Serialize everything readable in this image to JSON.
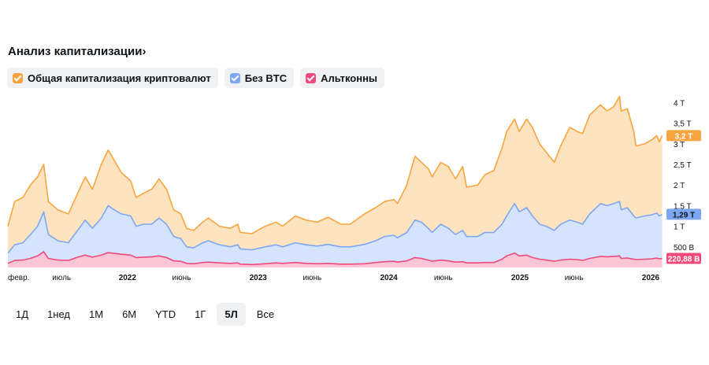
{
  "header": {
    "title": "Анализ капитализации›"
  },
  "legend": [
    {
      "label": "Общая капитализация криптовалют",
      "color": "#f7a540"
    },
    {
      "label": "Без BTC",
      "color": "#7ea7f2"
    },
    {
      "label": "Альтконны",
      "color": "#ef4a7d"
    }
  ],
  "tabs": [
    "1Д",
    "1нед",
    "1М",
    "6М",
    "YTD",
    "1Г",
    "5Л",
    "Все"
  ],
  "active_tab": "5Л",
  "chart_data": {
    "type": "area",
    "title": "Анализ капитализации",
    "x_start": "2021-02",
    "x_end": "2026-02",
    "ylim": [
      0,
      4.2
    ],
    "y_ticks": [
      {
        "v": 0.5,
        "label": "500 B"
      },
      {
        "v": 1.0,
        "label": "1 T"
      },
      {
        "v": 1.5,
        "label": "1,5 T"
      },
      {
        "v": 2.0,
        "label": "2 T"
      },
      {
        "v": 2.5,
        "label": "2,5 T"
      },
      {
        "v": 3.0,
        "label": "3 T"
      },
      {
        "v": 3.5,
        "label": "3,5 T"
      },
      {
        "v": 4.0,
        "label": "4 T"
      }
    ],
    "x_ticks": [
      {
        "t": "2021-02",
        "label": "февр."
      },
      {
        "t": "2021-07",
        "label": "июль"
      },
      {
        "t": "2022-01",
        "label": "2022"
      },
      {
        "t": "2022-06",
        "label": "июнь"
      },
      {
        "t": "2023-01",
        "label": "2023"
      },
      {
        "t": "2023-06",
        "label": "июнь"
      },
      {
        "t": "2024-01",
        "label": "2024"
      },
      {
        "t": "2024-06",
        "label": "июнь"
      },
      {
        "t": "2025-01",
        "label": "2025"
      },
      {
        "t": "2025-06",
        "label": "июнь"
      },
      {
        "t": "2026-01",
        "label": "2026"
      }
    ],
    "series": [
      {
        "name": "Общая капитализация криптовалют",
        "color": "#f7a540",
        "fill": "#fde3c0",
        "last_label": "3,2 T",
        "points": [
          [
            "2021-02-01",
            1.0
          ],
          [
            "2021-02-20",
            1.6
          ],
          [
            "2021-03-15",
            1.7
          ],
          [
            "2021-04-05",
            2.0
          ],
          [
            "2021-04-25",
            2.2
          ],
          [
            "2021-05-12",
            2.5
          ],
          [
            "2021-05-25",
            1.6
          ],
          [
            "2021-06-20",
            1.4
          ],
          [
            "2021-07-20",
            1.3
          ],
          [
            "2021-08-15",
            1.8
          ],
          [
            "2021-09-05",
            2.2
          ],
          [
            "2021-09-25",
            1.9
          ],
          [
            "2021-10-20",
            2.5
          ],
          [
            "2021-11-08",
            2.85
          ],
          [
            "2021-11-25",
            2.6
          ],
          [
            "2021-12-15",
            2.3
          ],
          [
            "2022-01-10",
            2.1
          ],
          [
            "2022-01-25",
            1.7
          ],
          [
            "2022-02-15",
            1.8
          ],
          [
            "2022-03-10",
            1.9
          ],
          [
            "2022-03-30",
            2.15
          ],
          [
            "2022-04-20",
            1.9
          ],
          [
            "2022-05-10",
            1.4
          ],
          [
            "2022-05-30",
            1.3
          ],
          [
            "2022-06-15",
            0.95
          ],
          [
            "2022-07-05",
            0.9
          ],
          [
            "2022-07-30",
            1.1
          ],
          [
            "2022-08-15",
            1.2
          ],
          [
            "2022-09-15",
            1.0
          ],
          [
            "2022-10-15",
            0.95
          ],
          [
            "2022-11-05",
            1.05
          ],
          [
            "2022-11-12",
            0.85
          ],
          [
            "2022-12-15",
            0.82
          ],
          [
            "2023-01-20",
            1.0
          ],
          [
            "2023-02-20",
            1.1
          ],
          [
            "2023-03-10",
            1.0
          ],
          [
            "2023-04-15",
            1.25
          ],
          [
            "2023-05-15",
            1.15
          ],
          [
            "2023-06-15",
            1.1
          ],
          [
            "2023-07-15",
            1.22
          ],
          [
            "2023-08-20",
            1.05
          ],
          [
            "2023-09-15",
            1.05
          ],
          [
            "2023-10-25",
            1.3
          ],
          [
            "2023-11-25",
            1.45
          ],
          [
            "2023-12-20",
            1.6
          ],
          [
            "2024-01-15",
            1.65
          ],
          [
            "2024-01-25",
            1.55
          ],
          [
            "2024-02-20",
            2.0
          ],
          [
            "2024-03-14",
            2.7
          ],
          [
            "2024-04-01",
            2.55
          ],
          [
            "2024-04-20",
            2.4
          ],
          [
            "2024-05-01",
            2.2
          ],
          [
            "2024-05-25",
            2.55
          ],
          [
            "2024-06-15",
            2.45
          ],
          [
            "2024-07-05",
            2.15
          ],
          [
            "2024-07-25",
            2.45
          ],
          [
            "2024-08-05",
            1.95
          ],
          [
            "2024-09-05",
            2.0
          ],
          [
            "2024-09-25",
            2.25
          ],
          [
            "2024-10-20",
            2.35
          ],
          [
            "2024-11-12",
            2.9
          ],
          [
            "2024-11-25",
            3.3
          ],
          [
            "2024-12-17",
            3.6
          ],
          [
            "2024-12-30",
            3.3
          ],
          [
            "2025-01-20",
            3.6
          ],
          [
            "2025-02-05",
            3.4
          ],
          [
            "2025-02-25",
            3.0
          ],
          [
            "2025-03-15",
            2.8
          ],
          [
            "2025-04-07",
            2.55
          ],
          [
            "2025-04-25",
            2.95
          ],
          [
            "2025-05-20",
            3.4
          ],
          [
            "2025-06-10",
            3.3
          ],
          [
            "2025-06-25",
            3.25
          ],
          [
            "2025-07-15",
            3.7
          ],
          [
            "2025-08-14",
            3.95
          ],
          [
            "2025-09-01",
            3.8
          ],
          [
            "2025-09-20",
            3.9
          ],
          [
            "2025-10-06",
            4.15
          ],
          [
            "2025-10-11",
            3.8
          ],
          [
            "2025-10-28",
            3.85
          ],
          [
            "2025-11-15",
            3.3
          ],
          [
            "2025-11-21",
            2.95
          ],
          [
            "2025-12-15",
            3.0
          ],
          [
            "2026-01-05",
            3.1
          ],
          [
            "2026-01-18",
            3.2
          ],
          [
            "2026-01-25",
            3.05
          ],
          [
            "2026-02-02",
            3.2
          ]
        ]
      },
      {
        "name": "Без BTC",
        "color": "#7ea7f2",
        "fill": "#d6e3fc",
        "last_label": "1,29 T",
        "points": [
          [
            "2021-02-01",
            0.35
          ],
          [
            "2021-02-20",
            0.55
          ],
          [
            "2021-03-15",
            0.6
          ],
          [
            "2021-04-05",
            0.8
          ],
          [
            "2021-04-25",
            1.0
          ],
          [
            "2021-05-12",
            1.35
          ],
          [
            "2021-05-25",
            0.8
          ],
          [
            "2021-06-20",
            0.65
          ],
          [
            "2021-07-20",
            0.6
          ],
          [
            "2021-08-15",
            0.9
          ],
          [
            "2021-09-05",
            1.15
          ],
          [
            "2021-09-25",
            0.95
          ],
          [
            "2021-10-20",
            1.2
          ],
          [
            "2021-11-08",
            1.5
          ],
          [
            "2021-11-25",
            1.4
          ],
          [
            "2021-12-15",
            1.3
          ],
          [
            "2022-01-10",
            1.25
          ],
          [
            "2022-01-25",
            1.0
          ],
          [
            "2022-02-15",
            1.05
          ],
          [
            "2022-03-10",
            1.05
          ],
          [
            "2022-03-30",
            1.2
          ],
          [
            "2022-04-20",
            1.05
          ],
          [
            "2022-05-10",
            0.75
          ],
          [
            "2022-05-30",
            0.7
          ],
          [
            "2022-06-15",
            0.5
          ],
          [
            "2022-07-05",
            0.48
          ],
          [
            "2022-07-30",
            0.6
          ],
          [
            "2022-08-15",
            0.65
          ],
          [
            "2022-09-15",
            0.55
          ],
          [
            "2022-10-15",
            0.5
          ],
          [
            "2022-11-05",
            0.55
          ],
          [
            "2022-11-12",
            0.45
          ],
          [
            "2022-12-15",
            0.43
          ],
          [
            "2023-01-20",
            0.5
          ],
          [
            "2023-02-20",
            0.55
          ],
          [
            "2023-03-10",
            0.5
          ],
          [
            "2023-04-15",
            0.6
          ],
          [
            "2023-05-15",
            0.55
          ],
          [
            "2023-06-15",
            0.52
          ],
          [
            "2023-07-15",
            0.56
          ],
          [
            "2023-08-20",
            0.5
          ],
          [
            "2023-09-15",
            0.5
          ],
          [
            "2023-10-25",
            0.56
          ],
          [
            "2023-11-25",
            0.65
          ],
          [
            "2023-12-20",
            0.75
          ],
          [
            "2024-01-15",
            0.78
          ],
          [
            "2024-01-25",
            0.72
          ],
          [
            "2024-02-20",
            0.85
          ],
          [
            "2024-03-14",
            1.15
          ],
          [
            "2024-04-01",
            1.1
          ],
          [
            "2024-04-20",
            0.95
          ],
          [
            "2024-05-01",
            0.85
          ],
          [
            "2024-05-25",
            1.05
          ],
          [
            "2024-06-15",
            0.95
          ],
          [
            "2024-07-05",
            0.8
          ],
          [
            "2024-07-25",
            0.9
          ],
          [
            "2024-08-05",
            0.75
          ],
          [
            "2024-09-05",
            0.75
          ],
          [
            "2024-09-25",
            0.85
          ],
          [
            "2024-10-20",
            0.85
          ],
          [
            "2024-11-12",
            1.05
          ],
          [
            "2024-11-25",
            1.25
          ],
          [
            "2024-12-17",
            1.55
          ],
          [
            "2024-12-30",
            1.35
          ],
          [
            "2025-01-20",
            1.45
          ],
          [
            "2025-02-05",
            1.25
          ],
          [
            "2025-02-25",
            1.05
          ],
          [
            "2025-03-15",
            1.0
          ],
          [
            "2025-04-07",
            0.9
          ],
          [
            "2025-04-25",
            1.05
          ],
          [
            "2025-05-20",
            1.15
          ],
          [
            "2025-06-10",
            1.1
          ],
          [
            "2025-06-25",
            1.05
          ],
          [
            "2025-07-15",
            1.3
          ],
          [
            "2025-08-14",
            1.55
          ],
          [
            "2025-09-01",
            1.5
          ],
          [
            "2025-09-20",
            1.55
          ],
          [
            "2025-10-06",
            1.6
          ],
          [
            "2025-10-11",
            1.4
          ],
          [
            "2025-10-28",
            1.45
          ],
          [
            "2025-11-15",
            1.25
          ],
          [
            "2025-11-21",
            1.2
          ],
          [
            "2025-12-15",
            1.25
          ],
          [
            "2026-01-05",
            1.28
          ],
          [
            "2026-01-18",
            1.32
          ],
          [
            "2026-01-25",
            1.25
          ],
          [
            "2026-02-02",
            1.29
          ]
        ]
      },
      {
        "name": "Альтконны",
        "color": "#ef4a7d",
        "fill": "#fcc6d6",
        "last_label": "220,88 B",
        "points": [
          [
            "2021-02-01",
            0.1
          ],
          [
            "2021-02-20",
            0.17
          ],
          [
            "2021-03-15",
            0.18
          ],
          [
            "2021-04-05",
            0.22
          ],
          [
            "2021-04-25",
            0.28
          ],
          [
            "2021-05-12",
            0.38
          ],
          [
            "2021-05-25",
            0.22
          ],
          [
            "2021-06-20",
            0.18
          ],
          [
            "2021-07-20",
            0.17
          ],
          [
            "2021-08-15",
            0.25
          ],
          [
            "2021-09-05",
            0.3
          ],
          [
            "2021-09-25",
            0.25
          ],
          [
            "2021-10-20",
            0.3
          ],
          [
            "2021-11-08",
            0.36
          ],
          [
            "2021-11-25",
            0.34
          ],
          [
            "2021-12-15",
            0.32
          ],
          [
            "2022-01-10",
            0.3
          ],
          [
            "2022-01-25",
            0.24
          ],
          [
            "2022-02-15",
            0.25
          ],
          [
            "2022-03-10",
            0.26
          ],
          [
            "2022-03-30",
            0.28
          ],
          [
            "2022-04-20",
            0.24
          ],
          [
            "2022-05-10",
            0.16
          ],
          [
            "2022-05-30",
            0.15
          ],
          [
            "2022-06-15",
            0.1
          ],
          [
            "2022-07-05",
            0.09
          ],
          [
            "2022-07-30",
            0.12
          ],
          [
            "2022-08-15",
            0.13
          ],
          [
            "2022-09-15",
            0.11
          ],
          [
            "2022-10-15",
            0.1
          ],
          [
            "2022-11-05",
            0.11
          ],
          [
            "2022-11-12",
            0.08
          ],
          [
            "2022-12-15",
            0.07
          ],
          [
            "2023-01-20",
            0.09
          ],
          [
            "2023-02-20",
            0.11
          ],
          [
            "2023-03-10",
            0.1
          ],
          [
            "2023-04-15",
            0.12
          ],
          [
            "2023-05-15",
            0.1
          ],
          [
            "2023-06-15",
            0.09
          ],
          [
            "2023-07-15",
            0.1
          ],
          [
            "2023-08-20",
            0.08
          ],
          [
            "2023-09-15",
            0.08
          ],
          [
            "2023-10-25",
            0.09
          ],
          [
            "2023-11-25",
            0.12
          ],
          [
            "2023-12-20",
            0.14
          ],
          [
            "2024-01-15",
            0.15
          ],
          [
            "2024-01-25",
            0.13
          ],
          [
            "2024-02-20",
            0.16
          ],
          [
            "2024-03-14",
            0.24
          ],
          [
            "2024-04-01",
            0.22
          ],
          [
            "2024-04-20",
            0.18
          ],
          [
            "2024-05-01",
            0.15
          ],
          [
            "2024-05-25",
            0.18
          ],
          [
            "2024-06-15",
            0.16
          ],
          [
            "2024-07-05",
            0.13
          ],
          [
            "2024-07-25",
            0.14
          ],
          [
            "2024-08-05",
            0.11
          ],
          [
            "2024-09-05",
            0.11
          ],
          [
            "2024-09-25",
            0.12
          ],
          [
            "2024-10-20",
            0.12
          ],
          [
            "2024-11-12",
            0.2
          ],
          [
            "2024-11-25",
            0.28
          ],
          [
            "2024-12-17",
            0.35
          ],
          [
            "2024-12-30",
            0.28
          ],
          [
            "2025-01-20",
            0.3
          ],
          [
            "2025-02-05",
            0.24
          ],
          [
            "2025-02-25",
            0.2
          ],
          [
            "2025-03-15",
            0.18
          ],
          [
            "2025-04-07",
            0.15
          ],
          [
            "2025-04-25",
            0.18
          ],
          [
            "2025-05-20",
            0.2
          ],
          [
            "2025-06-10",
            0.19
          ],
          [
            "2025-06-25",
            0.17
          ],
          [
            "2025-07-15",
            0.22
          ],
          [
            "2025-08-14",
            0.27
          ],
          [
            "2025-09-01",
            0.26
          ],
          [
            "2025-09-20",
            0.27
          ],
          [
            "2025-10-06",
            0.28
          ],
          [
            "2025-10-11",
            0.22
          ],
          [
            "2025-10-28",
            0.23
          ],
          [
            "2025-11-15",
            0.2
          ],
          [
            "2025-11-21",
            0.19
          ],
          [
            "2025-12-15",
            0.2
          ],
          [
            "2026-01-05",
            0.21
          ],
          [
            "2026-01-18",
            0.23
          ],
          [
            "2026-01-25",
            0.21
          ],
          [
            "2026-02-02",
            0.22
          ]
        ]
      }
    ]
  }
}
